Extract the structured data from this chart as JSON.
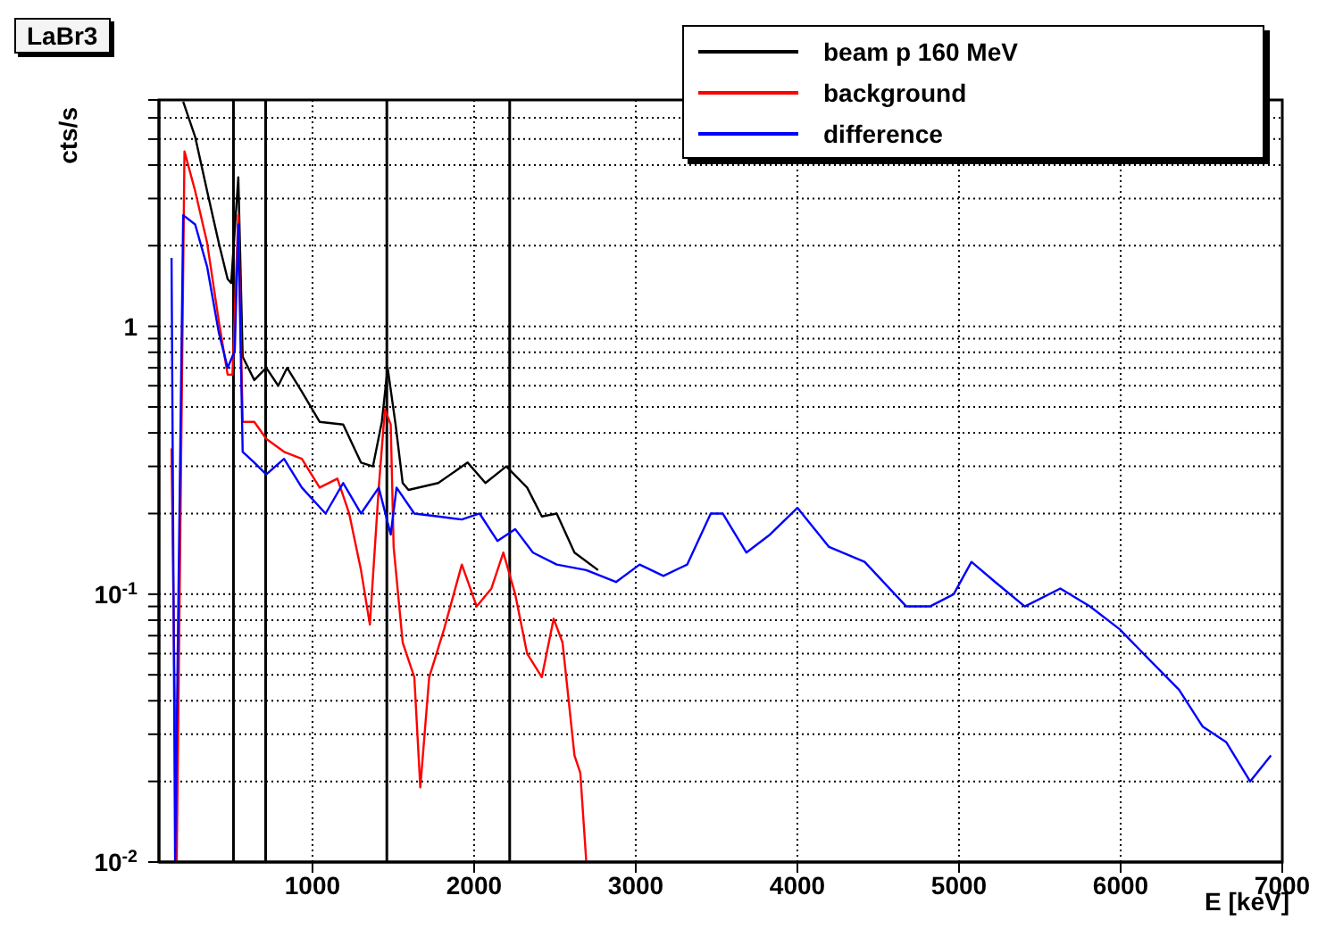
{
  "chart_data": {
    "type": "line",
    "title": "LaBr3",
    "xlabel": "E [keV]",
    "ylabel": "cts/s",
    "log": "y",
    "grid": true,
    "legend": "top right",
    "marker": "none",
    "line_style": "solid",
    "xlim": [
      50,
      7000
    ],
    "xticks": [
      1000,
      2000,
      3000,
      4000,
      5000,
      6000,
      7000
    ],
    "ylim": [
      0.01,
      7
    ],
    "yticks": [
      {
        "value": 0.01,
        "label": "10$^{-2}$"
      },
      {
        "value": 0.02,
        "label": null
      },
      {
        "value": 0.03,
        "label": null
      },
      {
        "value": 0.04,
        "label": null
      },
      {
        "value": 0.05,
        "label": null
      },
      {
        "value": 0.06,
        "label": null
      },
      {
        "value": 0.07,
        "label": null
      },
      {
        "value": 0.08,
        "label": null
      },
      {
        "value": 0.09,
        "label": null
      },
      {
        "value": 0.1,
        "label": "10$^{-1}$"
      },
      {
        "value": 0.2,
        "label": null
      },
      {
        "value": 0.3,
        "label": null
      },
      {
        "value": 0.4,
        "label": null
      },
      {
        "value": 0.5,
        "label": null
      },
      {
        "value": 0.6,
        "label": null
      },
      {
        "value": 0.7,
        "label": null
      },
      {
        "value": 0.8,
        "label": null
      },
      {
        "value": 0.9,
        "label": null
      },
      {
        "value": 1,
        "label": "1"
      },
      {
        "value": 2,
        "label": null
      },
      {
        "value": 3,
        "label": null
      },
      {
        "value": 4,
        "label": null
      },
      {
        "value": 5,
        "label": null
      },
      {
        "value": 6,
        "label": null
      },
      {
        "value": 7,
        "label": null
      }
    ],
    "ref_lines": [
      {
        "axis": "x",
        "value": 511,
        "color": "#000000"
      },
      {
        "axis": "x",
        "value": 710,
        "color": "#000000"
      },
      {
        "axis": "x",
        "value": 1460,
        "color": "#000000"
      },
      {
        "axis": "x",
        "value": 2220,
        "color": "#000000"
      }
    ],
    "series": [
      {
        "name": "beam p 160 MeV",
        "color": "#000000",
        "x": [
          200,
          274,
          348,
          420,
          475,
          497,
          541,
          568,
          640,
          714,
          788,
          843,
          934,
          1044,
          1190,
          1300,
          1374,
          1429,
          1465,
          1514,
          1558,
          1594,
          1778,
          1960,
          2070,
          2199,
          2328,
          2419,
          2511,
          2621,
          2767
        ],
        "values": [
          6.9,
          5.1,
          3.2,
          2.05,
          1.5,
          1.45,
          3.6,
          0.77,
          0.63,
          0.7,
          0.6,
          0.7,
          0.57,
          0.44,
          0.43,
          0.31,
          0.3,
          0.44,
          0.7,
          0.43,
          0.26,
          0.245,
          0.26,
          0.31,
          0.26,
          0.3,
          0.25,
          0.195,
          0.2,
          0.143,
          0.123
        ]
      },
      {
        "name": "background",
        "color": "#ff0000",
        "x": [
          128,
          160,
          208,
          274,
          348,
          420,
          475,
          505,
          541,
          568,
          640,
          714,
          824,
          934,
          1044,
          1154,
          1227,
          1300,
          1355,
          1410,
          1448,
          1484,
          1502,
          1558,
          1630,
          1667,
          1722,
          1814,
          1924,
          2016,
          2107,
          2181,
          2254,
          2328,
          2419,
          2492,
          2547,
          2621,
          2657,
          2694
        ],
        "values": [
          0.35,
          0.01,
          4.5,
          3.2,
          2.05,
          1.05,
          0.66,
          0.66,
          2.6,
          0.44,
          0.44,
          0.38,
          0.34,
          0.32,
          0.25,
          0.27,
          0.2,
          0.123,
          0.077,
          0.25,
          0.49,
          0.43,
          0.15,
          0.066,
          0.049,
          0.019,
          0.049,
          0.074,
          0.129,
          0.09,
          0.105,
          0.143,
          0.1,
          0.06,
          0.049,
          0.081,
          0.066,
          0.025,
          0.0215,
          0.01
        ]
      },
      {
        "name": "difference",
        "color": "#0000ff",
        "x": [
          128,
          150,
          200,
          274,
          348,
          420,
          475,
          519,
          541,
          568,
          640,
          714,
          824,
          934,
          1081,
          1190,
          1300,
          1410,
          1484,
          1520,
          1630,
          1778,
          1924,
          2034,
          2144,
          2254,
          2364,
          2511,
          2694,
          2878,
          3024,
          3171,
          3318,
          3464,
          3538,
          3684,
          3831,
          4000,
          4196,
          4416,
          4674,
          4820,
          4967,
          5077,
          5224,
          5407,
          5627,
          5810,
          5994,
          6177,
          6361,
          6508,
          6654,
          6801,
          6930
        ],
        "values": [
          1.8,
          0.01,
          2.6,
          2.4,
          1.67,
          0.95,
          0.7,
          0.81,
          2.4,
          0.34,
          0.31,
          0.28,
          0.32,
          0.25,
          0.2,
          0.26,
          0.2,
          0.25,
          0.167,
          0.25,
          0.2,
          0.195,
          0.19,
          0.2,
          0.158,
          0.175,
          0.143,
          0.129,
          0.123,
          0.111,
          0.129,
          0.117,
          0.129,
          0.2,
          0.2,
          0.143,
          0.167,
          0.21,
          0.15,
          0.132,
          0.09,
          0.09,
          0.1,
          0.132,
          0.111,
          0.09,
          0.105,
          0.09,
          0.074,
          0.057,
          0.044,
          0.032,
          0.028,
          0.02,
          0.025
        ]
      }
    ]
  }
}
